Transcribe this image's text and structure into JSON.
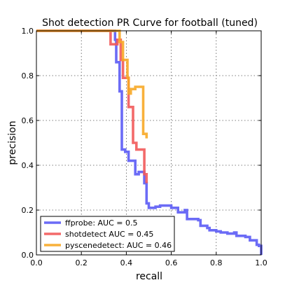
{
  "chart_data": {
    "type": "line",
    "title": "Shot detection PR Curve for football (tuned)",
    "xlabel": "recall",
    "ylabel": "precision",
    "xlim": [
      0.0,
      1.0
    ],
    "ylim": [
      0.0,
      1.0
    ],
    "xticks": [
      "0.0",
      "0.2",
      "0.4",
      "0.6",
      "0.8",
      "1.0"
    ],
    "yticks": [
      "0.0",
      "0.2",
      "0.4",
      "0.6",
      "0.8",
      "1.0"
    ],
    "grid": true,
    "legend_position": "lower-left",
    "series": [
      {
        "name": "ffprobe: AUC = 0.5",
        "color": "#5b5bf5",
        "x": [
          0.0,
          0.35,
          0.35,
          0.355,
          0.355,
          0.37,
          0.37,
          0.38,
          0.38,
          0.395,
          0.395,
          0.41,
          0.41,
          0.44,
          0.44,
          0.455,
          0.455,
          0.48,
          0.48,
          0.49,
          0.49,
          0.5,
          0.5,
          0.53,
          0.53,
          0.55,
          0.55,
          0.6,
          0.6,
          0.63,
          0.63,
          0.66,
          0.66,
          0.67,
          0.67,
          0.72,
          0.72,
          0.73,
          0.73,
          0.76,
          0.76,
          0.77,
          0.77,
          0.8,
          0.8,
          0.82,
          0.82,
          0.85,
          0.85,
          0.88,
          0.88,
          0.89,
          0.89,
          0.93,
          0.93,
          0.95,
          0.95,
          0.98,
          0.98,
          0.99,
          0.99,
          1.0,
          1.0
        ],
        "y": [
          1.0,
          1.0,
          0.96,
          0.96,
          0.86,
          0.86,
          0.73,
          0.73,
          0.47,
          0.47,
          0.46,
          0.46,
          0.42,
          0.42,
          0.36,
          0.36,
          0.37,
          0.37,
          0.32,
          0.32,
          0.23,
          0.23,
          0.21,
          0.21,
          0.215,
          0.215,
          0.22,
          0.22,
          0.21,
          0.21,
          0.19,
          0.19,
          0.2,
          0.2,
          0.16,
          0.16,
          0.155,
          0.155,
          0.13,
          0.13,
          0.12,
          0.12,
          0.11,
          0.11,
          0.105,
          0.105,
          0.1,
          0.1,
          0.095,
          0.095,
          0.1,
          0.1,
          0.085,
          0.085,
          0.08,
          0.08,
          0.065,
          0.065,
          0.045,
          0.045,
          0.04,
          0.04,
          0.0
        ]
      },
      {
        "name": "shotdetect AUC = 0.45",
        "color": "#f25a5a",
        "x": [
          0.0,
          0.33,
          0.33,
          0.36,
          0.36,
          0.375,
          0.375,
          0.385,
          0.385,
          0.41,
          0.41,
          0.43,
          0.43,
          0.445,
          0.445,
          0.48,
          0.48,
          0.49,
          0.49
        ],
        "y": [
          1.0,
          1.0,
          0.94,
          0.94,
          0.96,
          0.96,
          0.87,
          0.87,
          0.79,
          0.79,
          0.66,
          0.66,
          0.5,
          0.5,
          0.47,
          0.47,
          0.36,
          0.36,
          0.32
        ]
      },
      {
        "name": "pyscenedetect: AUC = 0.46",
        "color": "#f7a826",
        "x": [
          0.0,
          0.37,
          0.37,
          0.385,
          0.385,
          0.405,
          0.405,
          0.41,
          0.41,
          0.42,
          0.42,
          0.44,
          0.44,
          0.475,
          0.475,
          0.49,
          0.49
        ],
        "y": [
          1.0,
          1.0,
          0.95,
          0.95,
          0.87,
          0.87,
          0.79,
          0.79,
          0.72,
          0.72,
          0.74,
          0.74,
          0.75,
          0.75,
          0.54,
          0.54,
          0.52
        ]
      }
    ]
  }
}
